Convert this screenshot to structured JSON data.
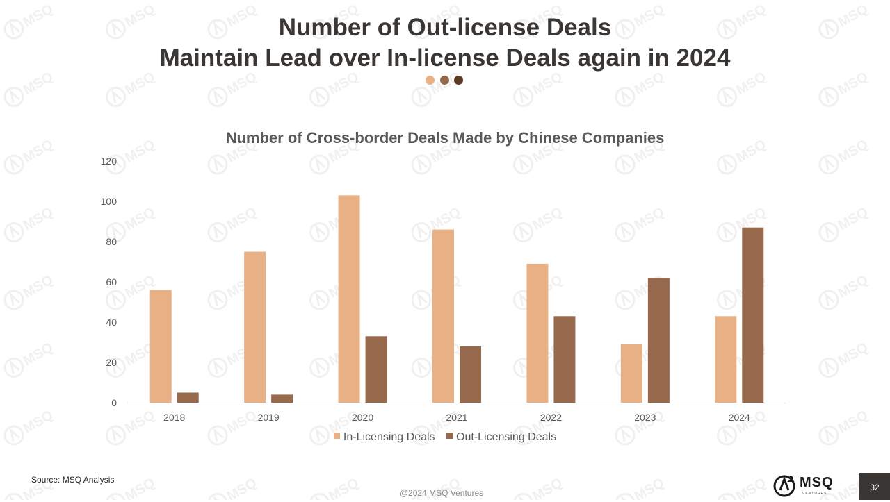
{
  "slide": {
    "title_line1": "Number of Out-license Deals",
    "title_line2": "Maintain Lead over In-license Deals again in 2024",
    "dot_colors": [
      "#e8b085",
      "#96694c",
      "#5c3a25"
    ],
    "source": "Source: MSQ Analysis",
    "copyright": "@2024 MSQ Ventures",
    "page_number": "32",
    "logo_text": "MSQ",
    "logo_sub": "VENTURES",
    "watermark_text": "MSQ",
    "watermark_icon": "msq-logo-icon"
  },
  "chart_data": {
    "type": "bar",
    "title": "Number of Cross-border Deals Made by Chinese Companies",
    "categories": [
      "2018",
      "2019",
      "2020",
      "2021",
      "2022",
      "2023",
      "2024"
    ],
    "series": [
      {
        "name": "In-Licensing Deals",
        "color": "#e8b085",
        "values": [
          56,
          75,
          103,
          86,
          69,
          29,
          43
        ]
      },
      {
        "name": "Out-Licensing Deals",
        "color": "#96694c",
        "values": [
          5,
          4,
          33,
          28,
          43,
          62,
          87
        ]
      }
    ],
    "ylim": [
      0,
      120
    ],
    "yticks": [
      0,
      20,
      40,
      60,
      80,
      100,
      120
    ],
    "grid": false,
    "legend": "bottom"
  }
}
